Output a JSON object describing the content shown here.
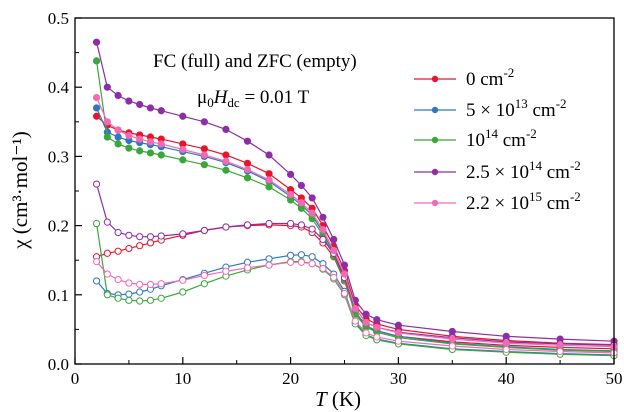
{
  "chart_data": {
    "type": "line",
    "xlabel_italic": "T",
    "xlabel_unit": " (K)",
    "ylabel": "χ (cm³·mol⁻¹)",
    "xlim": [
      0,
      50
    ],
    "ylim": [
      0,
      0.5
    ],
    "xticks": [
      "0",
      "10",
      "20",
      "30",
      "40",
      "50"
    ],
    "yticks": [
      "0.0",
      "0.1",
      "0.2",
      "0.3",
      "0.4",
      "0.5"
    ],
    "grid": false,
    "legend_position": "top-right",
    "annotations": {
      "line1": "FC (full) and ZFC (empty)",
      "line2_mu": "μ",
      "line2_sub0": "0",
      "line2_H": "H",
      "line2_subdc": "dc",
      "line2_value": " = 0.01 T"
    },
    "legend": [
      {
        "base": "0 cm",
        "sup": "-2",
        "color": "#e8152a"
      },
      {
        "base": "5 × 10",
        "sup1": "13",
        "mid": " cm",
        "sup2": "-2",
        "color": "#2e77c4"
      },
      {
        "base": "10",
        "sup1": "14",
        "mid": " cm",
        "sup2": "-2",
        "color": "#38a838"
      },
      {
        "base": "2.5 × 10",
        "sup1": "14",
        "mid": " cm",
        "sup2": "-2",
        "color": "#8e2ea6"
      },
      {
        "base": "2.2 × 10",
        "sup1": "15",
        "mid": " cm",
        "sup2": "-2",
        "color": "#f26ab2"
      }
    ],
    "x": [
      2,
      3,
      4,
      5,
      6,
      7,
      8,
      10,
      12,
      14,
      16,
      18,
      20,
      21,
      22,
      23,
      24,
      25,
      26,
      27,
      28,
      30,
      35,
      40,
      45,
      50
    ],
    "series": [
      {
        "name": "0 cm-2",
        "color": "#e8152a",
        "fill": "full",
        "values": [
          0.358,
          0.345,
          0.338,
          0.334,
          0.331,
          0.328,
          0.325,
          0.318,
          0.311,
          0.302,
          0.29,
          0.275,
          0.252,
          0.24,
          0.225,
          0.2,
          0.17,
          0.135,
          0.085,
          0.065,
          0.058,
          0.05,
          0.04,
          0.034,
          0.03,
          0.028
        ]
      },
      {
        "name": "0 cm-2",
        "color": "#e8152a",
        "fill": "empty",
        "values": [
          0.155,
          0.16,
          0.163,
          0.167,
          0.171,
          0.175,
          0.179,
          0.186,
          0.193,
          0.198,
          0.2,
          0.201,
          0.2,
          0.198,
          0.19,
          0.175,
          0.155,
          0.12,
          0.075,
          0.055,
          0.048,
          0.04,
          0.032,
          0.027,
          0.024,
          0.022
        ]
      },
      {
        "name": "5 × 10^13 cm-2",
        "color": "#2e77c4",
        "fill": "full",
        "values": [
          0.37,
          0.335,
          0.328,
          0.323,
          0.32,
          0.317,
          0.314,
          0.307,
          0.3,
          0.291,
          0.279,
          0.264,
          0.242,
          0.23,
          0.215,
          0.19,
          0.16,
          0.125,
          0.075,
          0.055,
          0.048,
          0.04,
          0.03,
          0.025,
          0.021,
          0.019
        ]
      },
      {
        "name": "5 × 10^13 cm-2",
        "color": "#2e77c4",
        "fill": "empty",
        "values": [
          0.12,
          0.102,
          0.1,
          0.101,
          0.104,
          0.108,
          0.113,
          0.122,
          0.131,
          0.14,
          0.147,
          0.152,
          0.157,
          0.158,
          0.155,
          0.145,
          0.13,
          0.105,
          0.06,
          0.042,
          0.036,
          0.03,
          0.022,
          0.018,
          0.015,
          0.013
        ]
      },
      {
        "name": "10^14 cm-2",
        "color": "#38a838",
        "fill": "full",
        "values": [
          0.438,
          0.328,
          0.318,
          0.312,
          0.308,
          0.305,
          0.302,
          0.295,
          0.288,
          0.28,
          0.269,
          0.256,
          0.237,
          0.225,
          0.21,
          0.186,
          0.156,
          0.122,
          0.072,
          0.053,
          0.046,
          0.038,
          0.029,
          0.024,
          0.02,
          0.018
        ]
      },
      {
        "name": "10^14 cm-2",
        "color": "#38a838",
        "fill": "empty",
        "values": [
          0.203,
          0.1,
          0.095,
          0.092,
          0.091,
          0.092,
          0.095,
          0.104,
          0.116,
          0.127,
          0.136,
          0.143,
          0.148,
          0.148,
          0.145,
          0.137,
          0.123,
          0.1,
          0.058,
          0.041,
          0.035,
          0.029,
          0.021,
          0.017,
          0.014,
          0.012
        ]
      },
      {
        "name": "2.5 × 10^14 cm-2",
        "color": "#8e2ea6",
        "fill": "full",
        "values": [
          0.465,
          0.4,
          0.388,
          0.38,
          0.375,
          0.37,
          0.366,
          0.358,
          0.35,
          0.339,
          0.322,
          0.302,
          0.274,
          0.258,
          0.24,
          0.212,
          0.18,
          0.143,
          0.092,
          0.072,
          0.064,
          0.056,
          0.047,
          0.04,
          0.036,
          0.033
        ]
      },
      {
        "name": "2.5 × 10^14 cm-2",
        "color": "#8e2ea6",
        "fill": "empty",
        "values": [
          0.26,
          0.205,
          0.19,
          0.186,
          0.184,
          0.184,
          0.185,
          0.188,
          0.193,
          0.198,
          0.201,
          0.203,
          0.203,
          0.201,
          0.195,
          0.18,
          0.16,
          0.125,
          0.08,
          0.06,
          0.053,
          0.046,
          0.038,
          0.032,
          0.029,
          0.027
        ]
      },
      {
        "name": "2.2 × 10^15 cm-2",
        "color": "#f26ab2",
        "fill": "full",
        "values": [
          0.385,
          0.35,
          0.338,
          0.33,
          0.325,
          0.321,
          0.318,
          0.31,
          0.302,
          0.293,
          0.281,
          0.266,
          0.245,
          0.233,
          0.218,
          0.194,
          0.164,
          0.13,
          0.08,
          0.06,
          0.053,
          0.045,
          0.036,
          0.03,
          0.027,
          0.025
        ]
      },
      {
        "name": "2.2 × 10^15 cm-2",
        "color": "#f26ab2",
        "fill": "empty",
        "values": [
          0.148,
          0.13,
          0.122,
          0.117,
          0.115,
          0.115,
          0.116,
          0.121,
          0.128,
          0.134,
          0.139,
          0.143,
          0.147,
          0.147,
          0.145,
          0.138,
          0.125,
          0.102,
          0.062,
          0.045,
          0.039,
          0.033,
          0.026,
          0.021,
          0.018,
          0.016
        ]
      }
    ]
  }
}
